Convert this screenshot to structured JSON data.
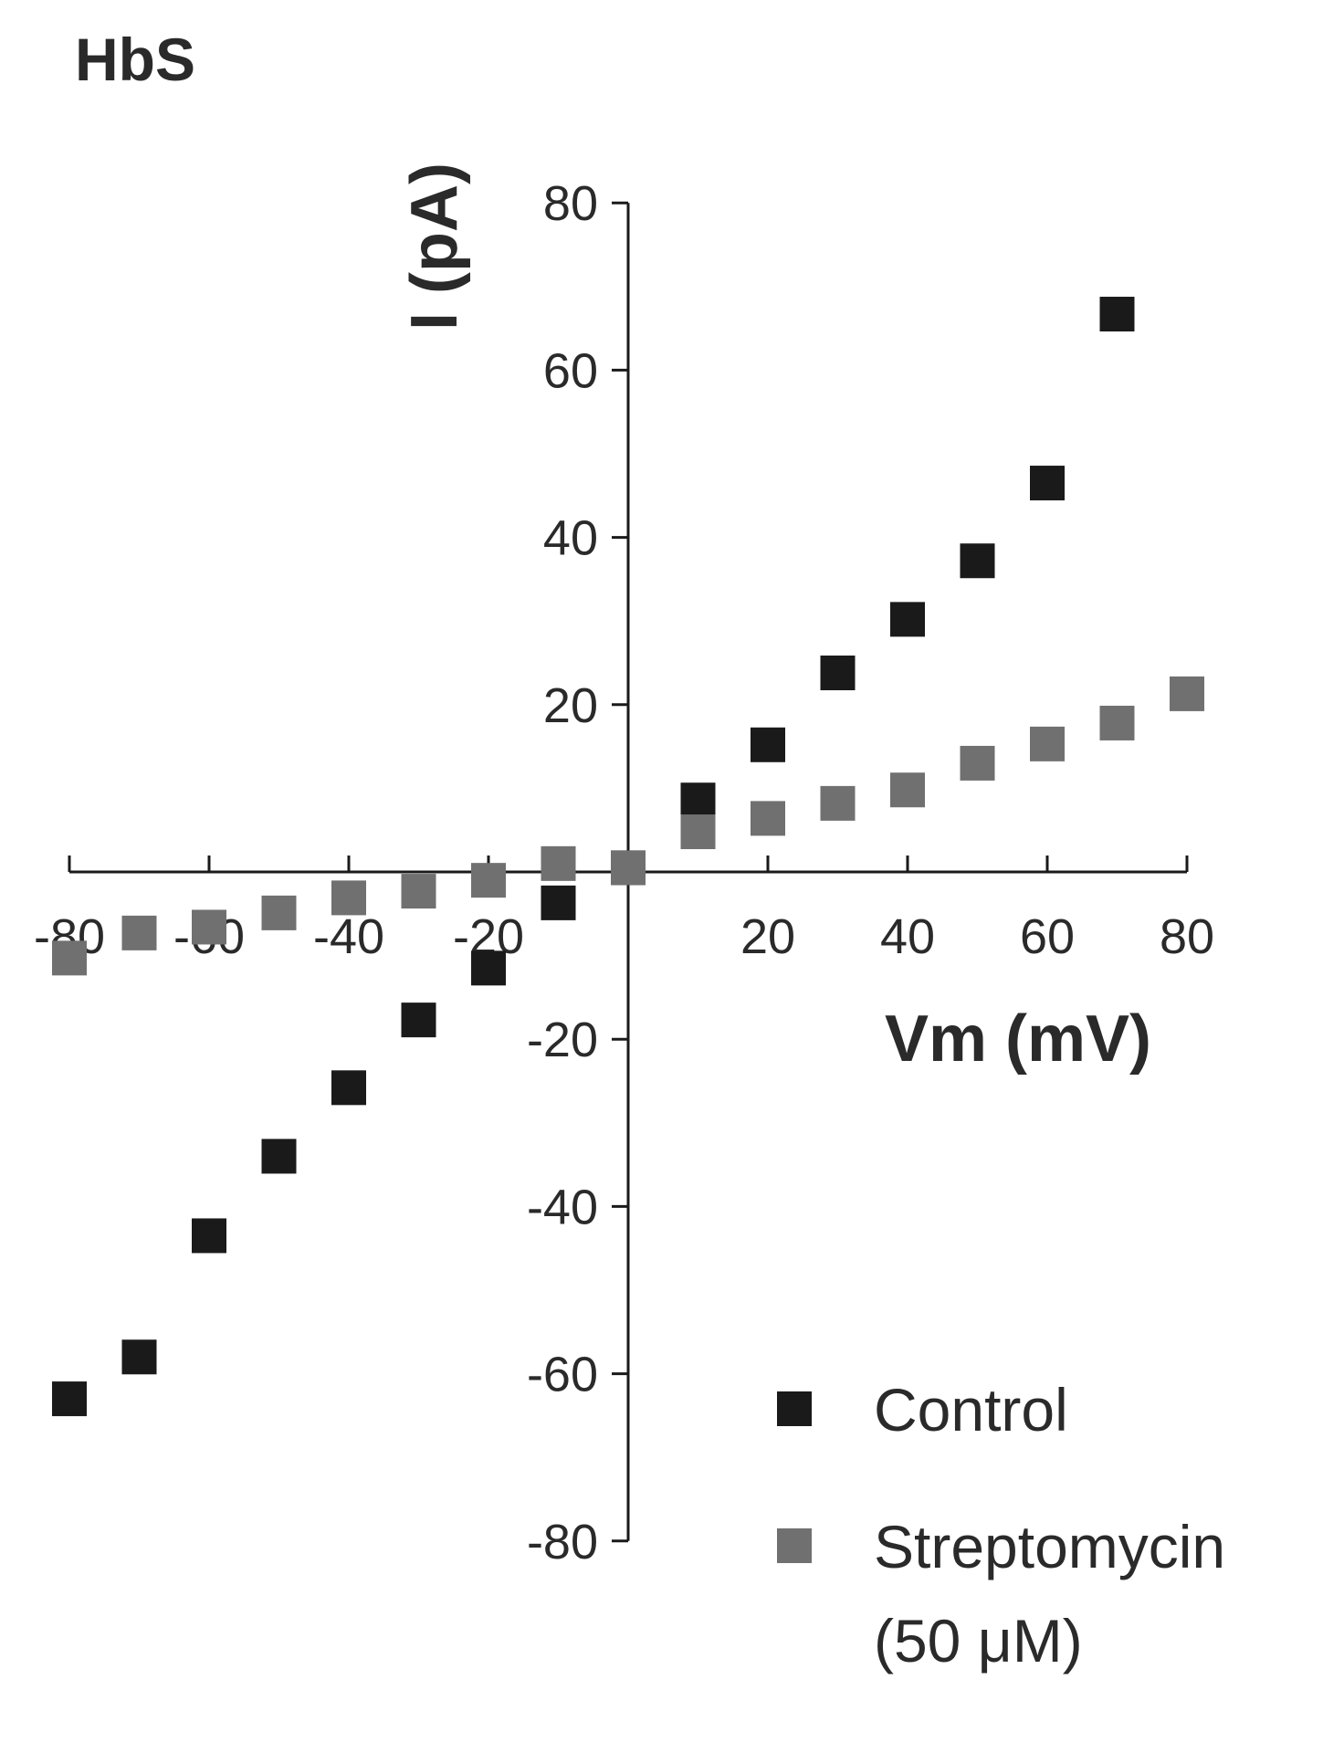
{
  "panel_label": "HbS",
  "chart_data": {
    "type": "scatter",
    "xlabel": "Vm (mV)",
    "ylabel": "I (pA)",
    "xlim": [
      -80,
      80
    ],
    "ylim": [
      -80,
      80
    ],
    "x_ticks": [
      -80,
      -60,
      -40,
      -20,
      20,
      40,
      60,
      80
    ],
    "y_ticks": [
      80,
      60,
      40,
      20,
      -20,
      -40,
      -60,
      -80
    ],
    "grid": false,
    "legend_position": "bottom-right",
    "series": [
      {
        "name": "Control",
        "color": "#1a1a1a",
        "x": [
          -80,
          -70,
          -60,
          -50,
          -40,
          -30,
          -20,
          -10,
          0,
          10,
          20,
          30,
          40,
          50,
          60,
          70
        ],
        "y": [
          -63,
          -58,
          -43.5,
          -34,
          -25.8,
          -17.7,
          -11.5,
          -3.7,
          0.5,
          8.6,
          15.2,
          23.8,
          30.2,
          37.2,
          46.5,
          66.7
        ]
      },
      {
        "name": "Streptomycin",
        "legend_lines": [
          "Streptomycin",
          "(50 μM)"
        ],
        "color": "#707070",
        "x": [
          -80,
          -70,
          -60,
          -50,
          -40,
          -30,
          -20,
          -10,
          0,
          10,
          20,
          30,
          40,
          50,
          60,
          70,
          80
        ],
        "y": [
          -10.3,
          -7.3,
          -6.6,
          -4.9,
          -3.1,
          -2.3,
          -1.0,
          1.0,
          0.5,
          4.8,
          6.4,
          8.2,
          9.8,
          13.0,
          15.3,
          17.8,
          21.3
        ]
      }
    ]
  }
}
